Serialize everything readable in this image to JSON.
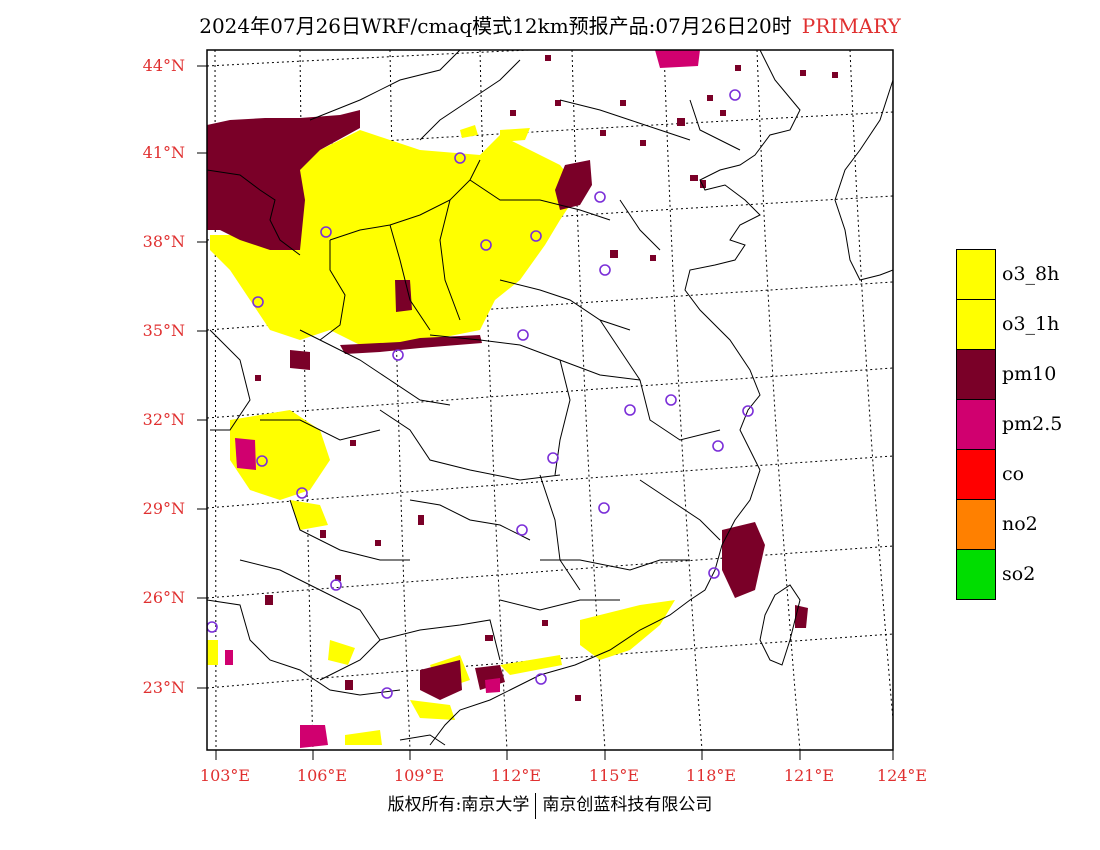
{
  "title": {
    "main": "2024年07月26日WRF/cmaq模式12km预报产品:07月26日20时",
    "tag": "PRIMARY"
  },
  "lat_labels": [
    "44°N",
    "41°N",
    "38°N",
    "35°N",
    "32°N",
    "29°N",
    "26°N",
    "23°N"
  ],
  "lon_labels": [
    "103°E",
    "106°E",
    "109°E",
    "112°E",
    "115°E",
    "118°E",
    "121°E",
    "124°E"
  ],
  "legend": [
    {
      "label": "o3_8h",
      "color": "#ffff00"
    },
    {
      "label": "o3_1h",
      "color": "#ffff00"
    },
    {
      "label": "pm10",
      "color": "#7a0028"
    },
    {
      "label": "pm2.5",
      "color": "#d0006f"
    },
    {
      "label": "co",
      "color": "#ff0000"
    },
    {
      "label": "no2",
      "color": "#ff8000"
    },
    {
      "label": "so2",
      "color": "#00dd00"
    }
  ],
  "footer": {
    "left": "版权所有:南京大学",
    "right": "南京创蓝科技有限公司"
  },
  "colors": {
    "label_red": "#e03030",
    "station_marker": "#7b2fd8"
  }
}
